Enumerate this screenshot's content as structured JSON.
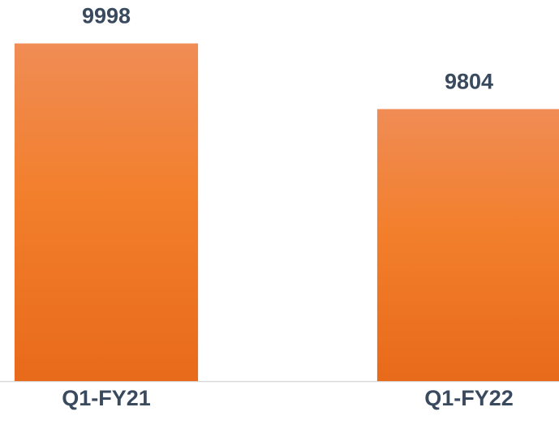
{
  "chart_data": {
    "type": "bar",
    "categories": [
      "Q1-FY21",
      "Q1-FY22"
    ],
    "values": [
      9998,
      9804
    ],
    "color": "#f07d2c",
    "ylim": [
      9000,
      10100
    ]
  }
}
